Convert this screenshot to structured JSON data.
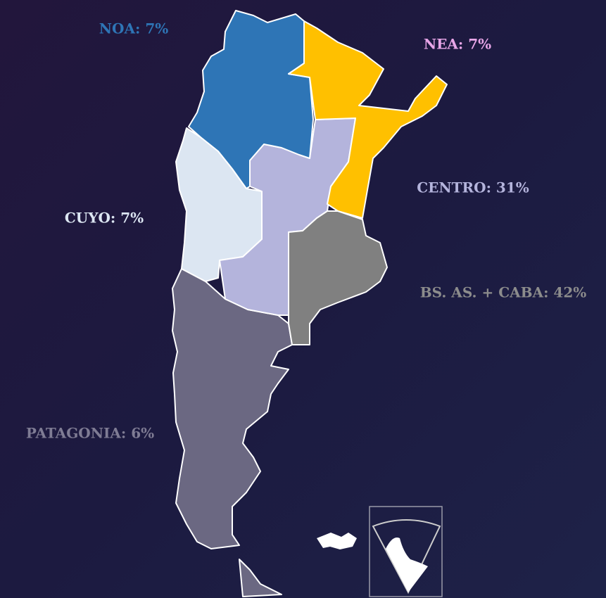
{
  "regions": [
    {
      "label": "NOA: 7%",
      "color": "#2e75b6"
    },
    {
      "label": "NEA: 7%",
      "color": "#ffc000"
    },
    {
      "label": "CENTRO: 31%",
      "color": "#b4b4dc"
    },
    {
      "label": "CUYO: 7%",
      "color": "#dce6f2"
    },
    {
      "label": "BS. AS. + CABA: 42%",
      "color": "#808080"
    },
    {
      "label": "PATAGONIA: 6%",
      "color": "#6b6882"
    }
  ],
  "label_colors": [
    "#2e75b6",
    "#e8a6e8",
    "#b4b4dc",
    "#dce6f2",
    "#8c8c8c",
    "#7f7c94"
  ]
}
